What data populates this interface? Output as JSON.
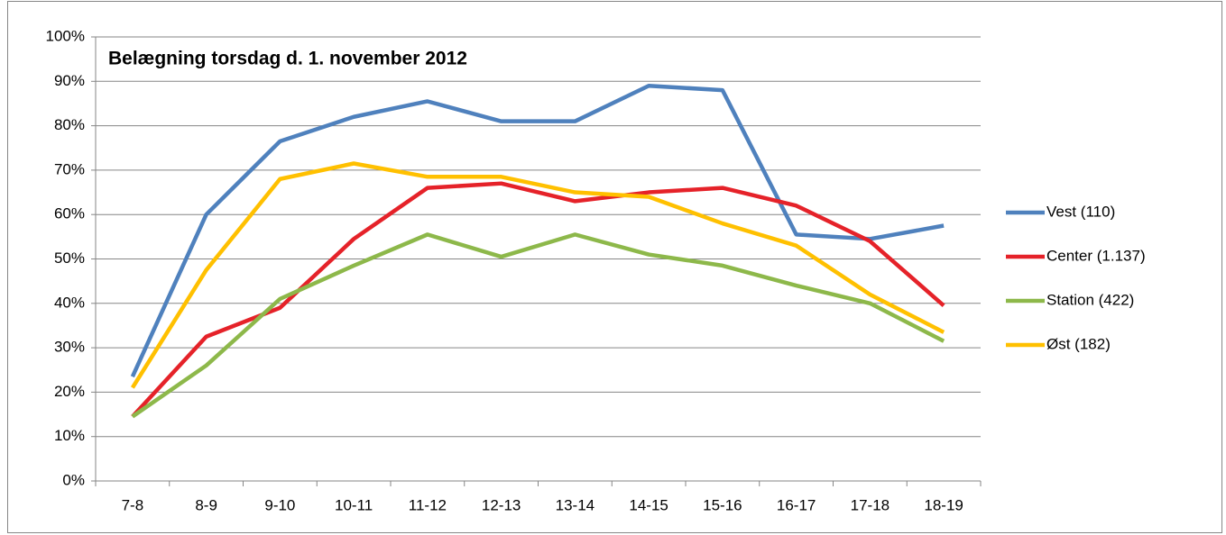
{
  "chart_data": {
    "type": "line",
    "title": "Belægning torsdag d. 1. november 2012",
    "categories": [
      "7-8",
      "8-9",
      "9-10",
      "10-11",
      "11-12",
      "12-13",
      "13-14",
      "14-15",
      "15-16",
      "16-17",
      "17-18",
      "18-19"
    ],
    "series": [
      {
        "name": "Vest (110)",
        "color": "#4f81bd",
        "values": [
          23.5,
          60,
          76.5,
          82,
          85.5,
          81,
          81,
          89,
          88,
          55.5,
          54.5,
          57.5
        ]
      },
      {
        "name": "Center (1.137)",
        "color": "#e52229",
        "values": [
          14.5,
          32.5,
          39,
          54.5,
          66,
          67,
          63,
          65,
          66,
          62,
          54,
          39.5
        ]
      },
      {
        "name": "Station (422)",
        "color": "#8db84a",
        "values": [
          14.5,
          26,
          41,
          48.5,
          55.5,
          50.5,
          55.5,
          51,
          48.5,
          44,
          40,
          31.5
        ]
      },
      {
        "name": "Øst (182)",
        "color": "#ffc000",
        "values": [
          21,
          47.5,
          68,
          71.5,
          68.5,
          68.5,
          65,
          64,
          58,
          53,
          42,
          33.5
        ]
      }
    ],
    "ylim": [
      0,
      100
    ],
    "yticks": [
      {
        "value": 0,
        "label": "0%"
      },
      {
        "value": 10,
        "label": "10%"
      },
      {
        "value": 20,
        "label": "20%"
      },
      {
        "value": 30,
        "label": "30%"
      },
      {
        "value": 40,
        "label": "40%"
      },
      {
        "value": 50,
        "label": "50%"
      },
      {
        "value": 60,
        "label": "60%"
      },
      {
        "value": 70,
        "label": "70%"
      },
      {
        "value": 80,
        "label": "80%"
      },
      {
        "value": 90,
        "label": "90%"
      },
      {
        "value": 100,
        "label": "100%"
      }
    ],
    "grid": true,
    "legend": "right"
  }
}
